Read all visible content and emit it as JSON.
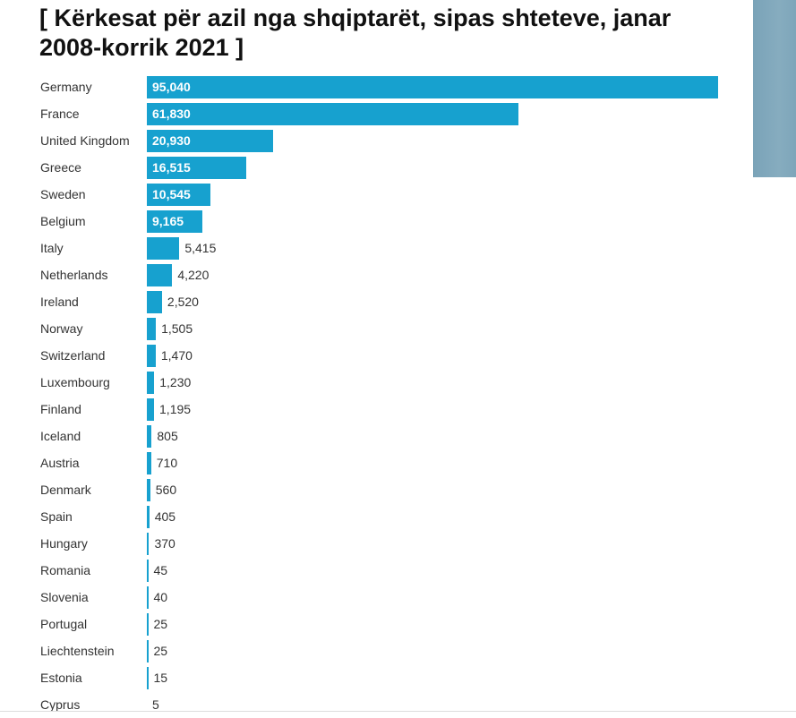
{
  "chart_data": {
    "type": "bar",
    "orientation": "horizontal",
    "title": "[ Kërkesat për azil nga shqiptarët, sipas shteteve, janar 2008-korrik 2021 ]",
    "categories": [
      "Germany",
      "France",
      "United Kingdom",
      "Greece",
      "Sweden",
      "Belgium",
      "Italy",
      "Netherlands",
      "Ireland",
      "Norway",
      "Switzerland",
      "Luxembourg",
      "Finland",
      "Iceland",
      "Austria",
      "Denmark",
      "Spain",
      "Hungary",
      "Romania",
      "Slovenia",
      "Portugal",
      "Liechtenstein",
      "Estonia",
      "Cyprus"
    ],
    "values": [
      95040,
      61830,
      20930,
      16515,
      10545,
      9165,
      5415,
      4220,
      2520,
      1505,
      1470,
      1230,
      1195,
      805,
      710,
      560,
      405,
      370,
      45,
      40,
      25,
      25,
      15,
      5
    ],
    "value_labels": [
      "95,040",
      "61,830",
      "20,930",
      "16,515",
      "10,545",
      "9,165",
      "5,415",
      "4,220",
      "2,520",
      "1,505",
      "1,470",
      "1,230",
      "1,195",
      "805",
      "710",
      "560",
      "405",
      "370",
      "45",
      "40",
      "25",
      "25",
      "15",
      "5"
    ],
    "xlim": [
      0,
      95040
    ],
    "bar_color": "#17a1cf"
  }
}
